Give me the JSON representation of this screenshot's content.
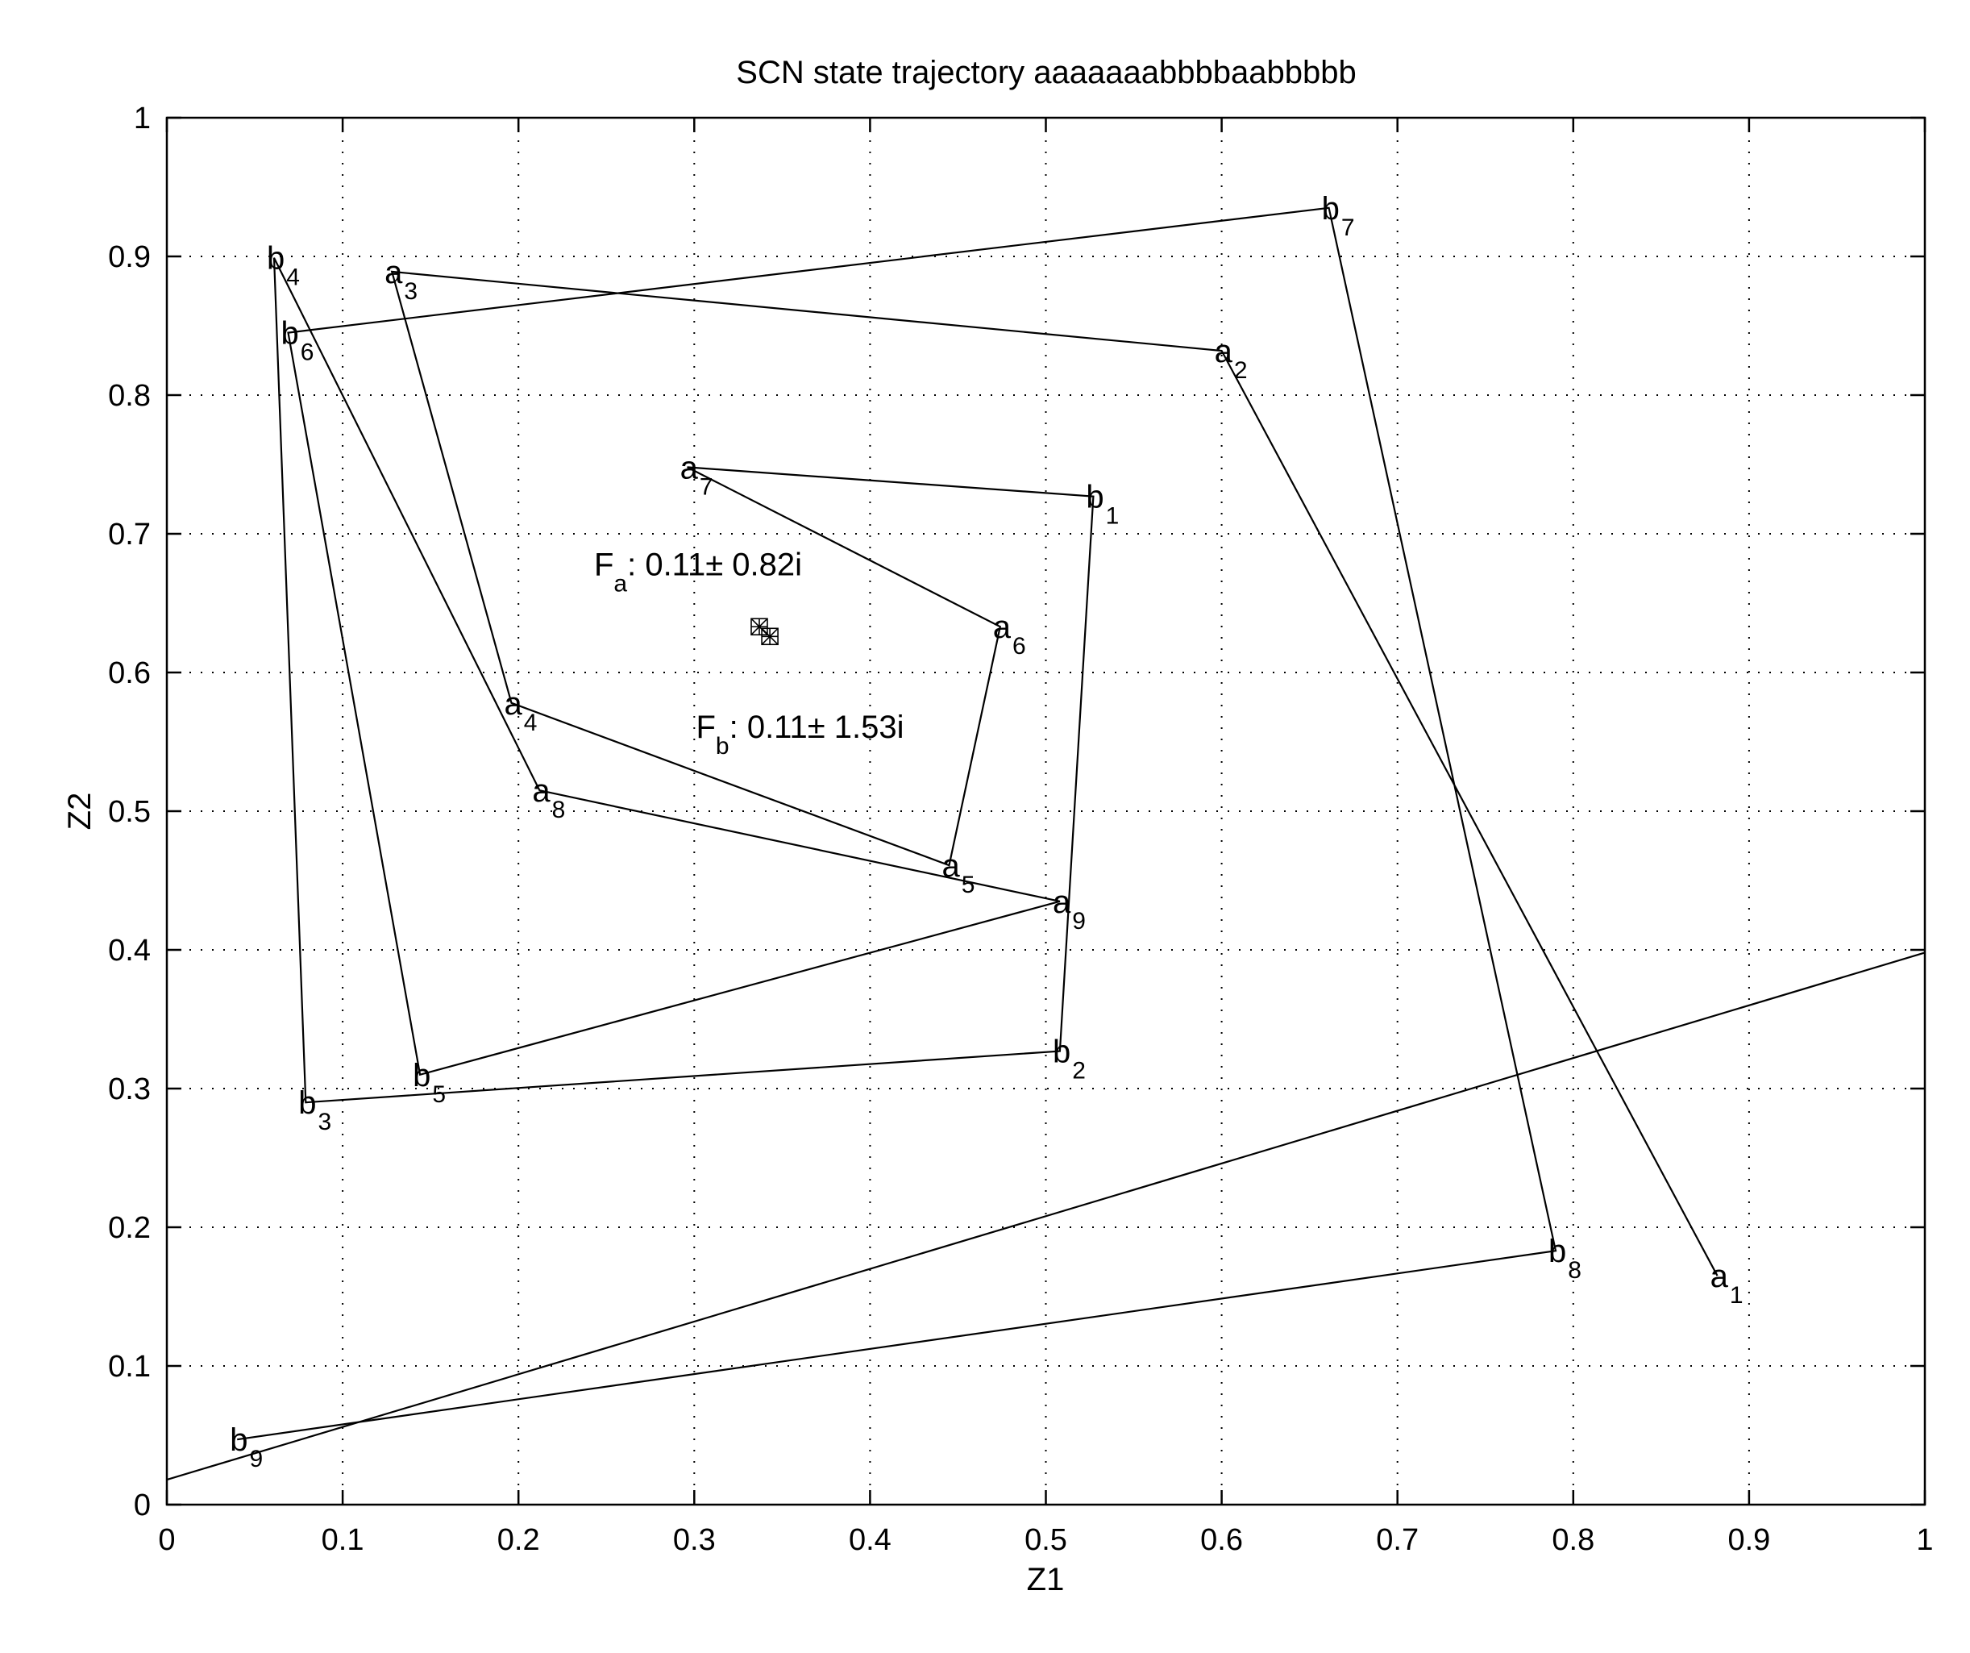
{
  "chart_data": {
    "type": "line",
    "title": "SCN state trajectory aaaaaaabbbbaabbbbb",
    "xlabel": "Z1",
    "ylabel": "Z2",
    "xlim": [
      0,
      1
    ],
    "ylim": [
      0,
      1
    ],
    "grid": true,
    "x_ticks": [
      0,
      0.1,
      0.2,
      0.3,
      0.4,
      0.5,
      0.6,
      0.7,
      0.8,
      0.9,
      1
    ],
    "x_tick_labels": [
      "0",
      "0.1",
      "0.2",
      "0.3",
      "0.4",
      "0.5",
      "0.6",
      "0.7",
      "0.8",
      "0.9",
      "1"
    ],
    "y_ticks": [
      0,
      0.1,
      0.2,
      0.3,
      0.4,
      0.5,
      0.6,
      0.7,
      0.8,
      0.9,
      1
    ],
    "y_tick_labels": [
      "0",
      "0.1",
      "0.2",
      "0.3",
      "0.4",
      "0.5",
      "0.6",
      "0.7",
      "0.8",
      "0.9",
      "1"
    ],
    "trajectory": [
      {
        "letter": "a",
        "index": "1",
        "x": 0.882,
        "y": 0.165
      },
      {
        "letter": "a",
        "index": "2",
        "x": 0.6,
        "y": 0.832
      },
      {
        "letter": "a",
        "index": "3",
        "x": 0.128,
        "y": 0.889
      },
      {
        "letter": "a",
        "index": "4",
        "x": 0.196,
        "y": 0.578
      },
      {
        "letter": "a",
        "index": "5",
        "x": 0.445,
        "y": 0.461
      },
      {
        "letter": "a",
        "index": "6",
        "x": 0.474,
        "y": 0.633
      },
      {
        "letter": "a",
        "index": "7",
        "x": 0.296,
        "y": 0.748
      },
      {
        "letter": "b",
        "index": "1",
        "x": 0.527,
        "y": 0.727
      },
      {
        "letter": "b",
        "index": "2",
        "x": 0.508,
        "y": 0.327
      },
      {
        "letter": "b",
        "index": "3",
        "x": 0.079,
        "y": 0.29
      },
      {
        "letter": "b",
        "index": "4",
        "x": 0.061,
        "y": 0.899
      },
      {
        "letter": "a",
        "index": "8",
        "x": 0.212,
        "y": 0.515
      },
      {
        "letter": "a",
        "index": "9",
        "x": 0.508,
        "y": 0.435
      },
      {
        "letter": "b",
        "index": "5",
        "x": 0.144,
        "y": 0.31
      },
      {
        "letter": "b",
        "index": "6",
        "x": 0.069,
        "y": 0.845
      },
      {
        "letter": "b",
        "index": "7",
        "x": 0.661,
        "y": 0.935
      },
      {
        "letter": "b",
        "index": "8",
        "x": 0.79,
        "y": 0.183
      },
      {
        "letter": "b",
        "index": "9",
        "x": 0.04,
        "y": 0.047
      }
    ],
    "extra_line": {
      "x": [
        0,
        1
      ],
      "y": [
        0.018,
        0.398
      ]
    },
    "fixed_points": [
      {
        "x": 0.337,
        "y": 0.633
      },
      {
        "x": 0.343,
        "y": 0.626
      }
    ],
    "annotations": [
      {
        "main": "F",
        "sub": "a",
        "text": ": 0.11± 0.82i",
        "x": 0.243,
        "y": 0.67
      },
      {
        "main": "F",
        "sub": "b",
        "text": ": 0.11± 1.53i",
        "x": 0.301,
        "y": 0.553
      }
    ]
  }
}
